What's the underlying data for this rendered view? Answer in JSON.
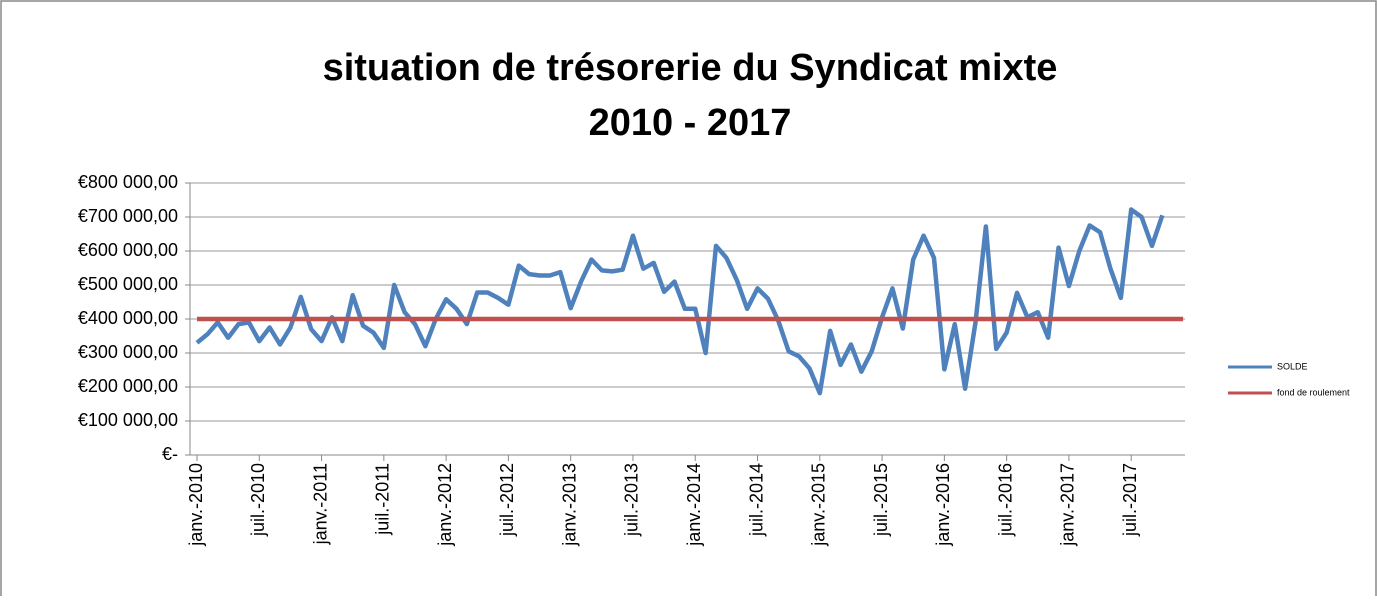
{
  "chart_data": {
    "type": "line",
    "title": [
      "situation de trésorerie du Syndicat mixte",
      "2010 - 2017"
    ],
    "categories": [
      "janv.-2010",
      null,
      null,
      null,
      null,
      null,
      "juil.-2010",
      null,
      null,
      null,
      null,
      null,
      "janv.-2011",
      null,
      null,
      null,
      null,
      null,
      "juil.-2011",
      null,
      null,
      null,
      null,
      null,
      "janv.-2012",
      null,
      null,
      null,
      null,
      null,
      "juil.-2012",
      null,
      null,
      null,
      null,
      null,
      "janv.-2013",
      null,
      null,
      null,
      null,
      null,
      "juil.-2013",
      null,
      null,
      null,
      null,
      null,
      "janv.-2014",
      null,
      null,
      null,
      null,
      null,
      "juil.-2014",
      null,
      null,
      null,
      null,
      null,
      "janv.-2015",
      null,
      null,
      null,
      null,
      null,
      "juil.-2015",
      null,
      null,
      null,
      null,
      null,
      "janv.-2016",
      null,
      null,
      null,
      null,
      null,
      "juil.-2016",
      null,
      null,
      null,
      null,
      null,
      "janv.-2017",
      null,
      null,
      null,
      null,
      null,
      "juil.-2017",
      null,
      null,
      null,
      null,
      null
    ],
    "series": [
      {
        "name": "SOLDE",
        "color": "#4f81bd",
        "values": [
          330000,
          355000,
          390000,
          345000,
          385000,
          390000,
          335000,
          375000,
          325000,
          375000,
          465000,
          370000,
          335000,
          405000,
          335000,
          470000,
          380000,
          360000,
          315000,
          500000,
          420000,
          385000,
          320000,
          400000,
          458000,
          430000,
          385000,
          478000,
          478000,
          462000,
          442000,
          557000,
          532000,
          528000,
          528000,
          538000,
          432000,
          510000,
          575000,
          543000,
          540000,
          545000,
          645000,
          548000,
          565000,
          480000,
          510000,
          430000,
          430000,
          300000,
          615000,
          580000,
          515000,
          430000,
          490000,
          460000,
          395000,
          305000,
          290000,
          255000,
          182000,
          365000,
          265000,
          325000,
          245000,
          305000,
          405000,
          490000,
          372000,
          575000,
          645000,
          580000,
          252000,
          385000,
          195000,
          390000,
          672000,
          312000,
          360000,
          477000,
          405000,
          420000,
          345000,
          610000,
          497000,
          600000,
          675000,
          655000,
          548000,
          462000,
          722000,
          700000,
          615000,
          705000,
          null,
          null
        ]
      },
      {
        "name": "fond de roulement",
        "color": "#c0504d",
        "values": [
          400000,
          400000,
          400000,
          400000,
          400000,
          400000,
          400000,
          400000,
          400000,
          400000,
          400000,
          400000,
          400000,
          400000,
          400000,
          400000,
          400000,
          400000,
          400000,
          400000,
          400000,
          400000,
          400000,
          400000,
          400000,
          400000,
          400000,
          400000,
          400000,
          400000,
          400000,
          400000,
          400000,
          400000,
          400000,
          400000,
          400000,
          400000,
          400000,
          400000,
          400000,
          400000,
          400000,
          400000,
          400000,
          400000,
          400000,
          400000,
          400000,
          400000,
          400000,
          400000,
          400000,
          400000,
          400000,
          400000,
          400000,
          400000,
          400000,
          400000,
          400000,
          400000,
          400000,
          400000,
          400000,
          400000,
          400000,
          400000,
          400000,
          400000,
          400000,
          400000,
          400000,
          400000,
          400000,
          400000,
          400000,
          400000,
          400000,
          400000,
          400000,
          400000,
          400000,
          400000,
          400000,
          400000,
          400000,
          400000,
          400000,
          400000,
          400000,
          400000,
          400000,
          400000,
          400000,
          400000
        ]
      }
    ],
    "ylim": [
      0,
      800000
    ],
    "yticks": [
      {
        "value": 0,
        "label": "€-"
      },
      {
        "value": 100000,
        "label": "€100 000,00"
      },
      {
        "value": 200000,
        "label": "€200 000,00"
      },
      {
        "value": 300000,
        "label": "€300 000,00"
      },
      {
        "value": 400000,
        "label": "€400 000,00"
      },
      {
        "value": 500000,
        "label": "€500 000,00"
      },
      {
        "value": 600000,
        "label": "€600 000,00"
      },
      {
        "value": 700000,
        "label": "€700 000,00"
      },
      {
        "value": 800000,
        "label": "€800 000,00"
      }
    ],
    "grid": true,
    "legend": "right"
  }
}
